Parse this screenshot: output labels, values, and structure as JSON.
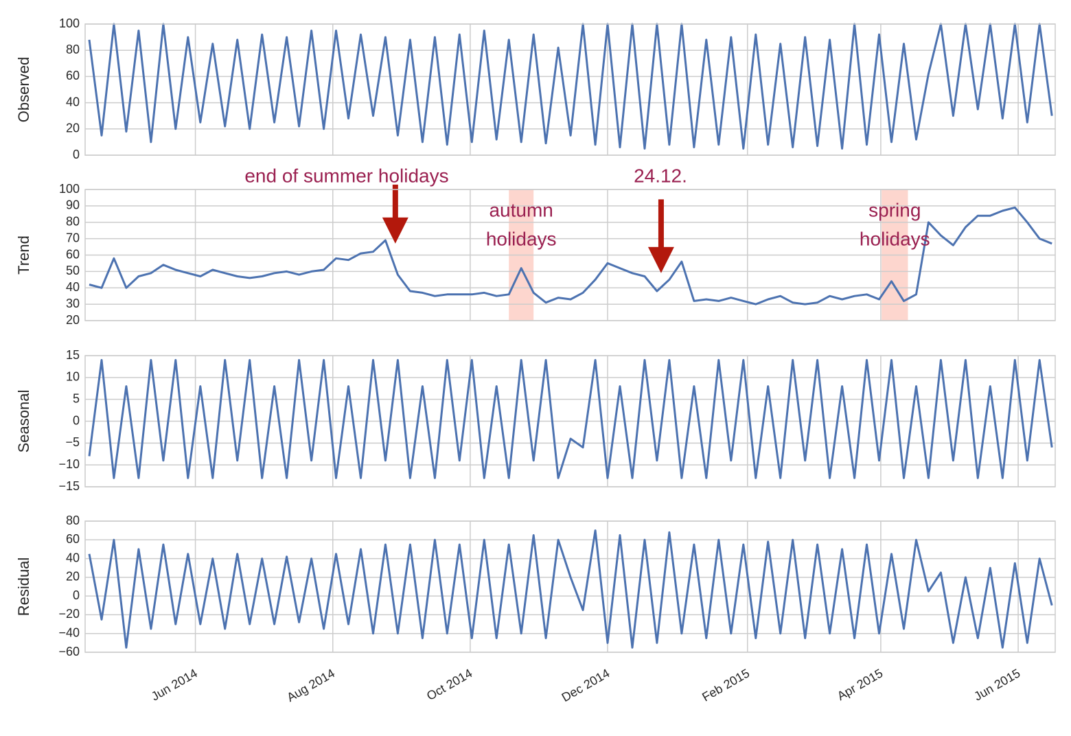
{
  "chart_data": [
    {
      "type": "line",
      "ylabel": "Observed",
      "color": "#4c72b0",
      "x": [
        2014.285,
        2014.3,
        2014.315,
        2014.33,
        2014.345,
        2014.36,
        2014.375,
        2014.39,
        2014.405,
        2014.42,
        2014.435,
        2014.45,
        2014.465,
        2014.48,
        2014.495,
        2014.51,
        2014.525,
        2014.54,
        2014.555,
        2014.57,
        2014.585,
        2014.6,
        2014.615,
        2014.63,
        2014.645,
        2014.66,
        2014.675,
        2014.69,
        2014.705,
        2014.72,
        2014.735,
        2014.75,
        2014.765,
        2014.78,
        2014.795,
        2014.81,
        2014.825,
        2014.84,
        2014.855,
        2014.87,
        2014.885,
        2014.9,
        2014.915,
        2014.93,
        2014.945,
        2014.96,
        2014.975,
        2014.99,
        2015.005,
        2015.02,
        2015.035,
        2015.05,
        2015.065,
        2015.08,
        2015.095,
        2015.11,
        2015.125,
        2015.14,
        2015.155,
        2015.17,
        2015.185,
        2015.2,
        2015.215,
        2015.23,
        2015.245,
        2015.26,
        2015.275,
        2015.29,
        2015.305,
        2015.32,
        2015.335,
        2015.35,
        2015.365,
        2015.38,
        2015.395,
        2015.41,
        2015.425,
        2015.44,
        2015.455
      ],
      "values": [
        88,
        15,
        100,
        18,
        95,
        10,
        100,
        20,
        90,
        25,
        85,
        22,
        88,
        20,
        92,
        25,
        90,
        22,
        95,
        20,
        95,
        28,
        92,
        30,
        90,
        15,
        88,
        10,
        90,
        8,
        92,
        10,
        95,
        12,
        88,
        10,
        92,
        9,
        82,
        15,
        100,
        8,
        100,
        6,
        100,
        5,
        100,
        8,
        100,
        6,
        88,
        8,
        90,
        5,
        92,
        8,
        85,
        6,
        90,
        7,
        88,
        5,
        100,
        8,
        92,
        10,
        85,
        12,
        62,
        100,
        30,
        100,
        35,
        100,
        28,
        100,
        25,
        100,
        30
      ],
      "xlim": [
        2014.28,
        2015.459
      ],
      "ylim": [
        0,
        100
      ],
      "yticks": [
        0,
        20,
        40,
        60,
        80,
        100
      ],
      "grid": true
    },
    {
      "type": "line",
      "ylabel": "Trend",
      "color": "#4c72b0",
      "x": [
        2014.285,
        2014.3,
        2014.315,
        2014.33,
        2014.345,
        2014.36,
        2014.375,
        2014.39,
        2014.405,
        2014.42,
        2014.435,
        2014.45,
        2014.465,
        2014.48,
        2014.495,
        2014.51,
        2014.525,
        2014.54,
        2014.555,
        2014.57,
        2014.585,
        2014.6,
        2014.615,
        2014.63,
        2014.645,
        2014.66,
        2014.675,
        2014.69,
        2014.705,
        2014.72,
        2014.735,
        2014.75,
        2014.765,
        2014.78,
        2014.795,
        2014.81,
        2014.825,
        2014.84,
        2014.855,
        2014.87,
        2014.885,
        2014.9,
        2014.915,
        2014.93,
        2014.945,
        2014.96,
        2014.975,
        2014.99,
        2015.005,
        2015.02,
        2015.035,
        2015.05,
        2015.065,
        2015.08,
        2015.095,
        2015.11,
        2015.125,
        2015.14,
        2015.155,
        2015.17,
        2015.185,
        2015.2,
        2015.215,
        2015.23,
        2015.245,
        2015.26,
        2015.275,
        2015.29,
        2015.305,
        2015.32,
        2015.335,
        2015.35,
        2015.365,
        2015.38,
        2015.395,
        2015.41,
        2015.425,
        2015.44,
        2015.455
      ],
      "values": [
        42,
        40,
        58,
        40,
        47,
        49,
        54,
        51,
        49,
        47,
        51,
        49,
        47,
        46,
        47,
        49,
        50,
        48,
        50,
        51,
        58,
        57,
        61,
        62,
        69,
        48,
        38,
        37,
        35,
        36,
        36,
        36,
        37,
        35,
        36,
        52,
        37,
        31,
        34,
        33,
        37,
        45,
        55,
        52,
        49,
        47,
        38,
        45,
        56,
        32,
        33,
        32,
        34,
        32,
        30,
        33,
        35,
        31,
        30,
        31,
        35,
        33,
        35,
        36,
        33,
        44,
        32,
        36,
        80,
        72,
        66,
        77,
        84,
        84,
        87,
        89,
        80,
        70,
        67
      ],
      "xlim": [
        2014.28,
        2015.459
      ],
      "ylim": [
        20,
        100
      ],
      "yticks": [
        20,
        30,
        40,
        50,
        60,
        70,
        80,
        90,
        100
      ],
      "grid": true,
      "annotations": [
        {
          "text": "end of summer holidays",
          "x": 2014.657,
          "y": [
            67,
            103
          ]
        },
        {
          "text": "24.12.",
          "x": 2014.98,
          "y": [
            49,
            94
          ]
        }
      ],
      "spans": [
        {
          "text": [
            "autumn",
            "holidays"
          ],
          "x": [
            2014.795,
            2014.825
          ]
        },
        {
          "text": [
            "spring",
            "holidays"
          ],
          "x": [
            2015.248,
            2015.28
          ]
        }
      ]
    },
    {
      "type": "line",
      "ylabel": "Seasonal",
      "color": "#4c72b0",
      "x": [
        2014.285,
        2014.3,
        2014.315,
        2014.33,
        2014.345,
        2014.36,
        2014.375,
        2014.39,
        2014.405,
        2014.42,
        2014.435,
        2014.45,
        2014.465,
        2014.48,
        2014.495,
        2014.51,
        2014.525,
        2014.54,
        2014.555,
        2014.57,
        2014.585,
        2014.6,
        2014.615,
        2014.63,
        2014.645,
        2014.66,
        2014.675,
        2014.69,
        2014.705,
        2014.72,
        2014.735,
        2014.75,
        2014.765,
        2014.78,
        2014.795,
        2014.81,
        2014.825,
        2014.84,
        2014.855,
        2014.87,
        2014.885,
        2014.9,
        2014.915,
        2014.93,
        2014.945,
        2014.96,
        2014.975,
        2014.99,
        2015.005,
        2015.02,
        2015.035,
        2015.05,
        2015.065,
        2015.08,
        2015.095,
        2015.11,
        2015.125,
        2015.14,
        2015.155,
        2015.17,
        2015.185,
        2015.2,
        2015.215,
        2015.23,
        2015.245,
        2015.26,
        2015.275,
        2015.29,
        2015.305,
        2015.32,
        2015.335,
        2015.35,
        2015.365,
        2015.38,
        2015.395,
        2015.41,
        2015.425,
        2015.44,
        2015.455
      ],
      "values": [
        -8,
        14,
        -13,
        8,
        -13,
        14,
        -9,
        14,
        -13,
        8,
        -13,
        14,
        -9,
        14,
        -13,
        8,
        -13,
        14,
        -9,
        14,
        -13,
        8,
        -13,
        14,
        -9,
        14,
        -13,
        8,
        -13,
        14,
        -9,
        14,
        -13,
        8,
        -13,
        14,
        -9,
        14,
        -13,
        -4,
        -6,
        14,
        -13,
        8,
        -13,
        14,
        -9,
        14,
        -13,
        8,
        -13,
        14,
        -9,
        14,
        -13,
        8,
        -13,
        14,
        -9,
        14,
        -13,
        8,
        -13,
        14,
        -9,
        14,
        -13,
        8,
        -13,
        14,
        -9,
        14,
        -13,
        8,
        -13,
        14,
        -9,
        14,
        -6
      ],
      "xlim": [
        2014.28,
        2015.459
      ],
      "ylim": [
        -15,
        15
      ],
      "yticks": [
        {
          "value": -15,
          "label": "−15"
        },
        {
          "value": -10,
          "label": "−10"
        },
        {
          "value": -5,
          "label": "−5"
        },
        0,
        5,
        10,
        15
      ],
      "grid": true
    },
    {
      "type": "line",
      "ylabel": "Residual",
      "color": "#4c72b0",
      "x": [
        2014.285,
        2014.3,
        2014.315,
        2014.33,
        2014.345,
        2014.36,
        2014.375,
        2014.39,
        2014.405,
        2014.42,
        2014.435,
        2014.45,
        2014.465,
        2014.48,
        2014.495,
        2014.51,
        2014.525,
        2014.54,
        2014.555,
        2014.57,
        2014.585,
        2014.6,
        2014.615,
        2014.63,
        2014.645,
        2014.66,
        2014.675,
        2014.69,
        2014.705,
        2014.72,
        2014.735,
        2014.75,
        2014.765,
        2014.78,
        2014.795,
        2014.81,
        2014.825,
        2014.84,
        2014.855,
        2014.87,
        2014.885,
        2014.9,
        2014.915,
        2014.93,
        2014.945,
        2014.96,
        2014.975,
        2014.99,
        2015.005,
        2015.02,
        2015.035,
        2015.05,
        2015.065,
        2015.08,
        2015.095,
        2015.11,
        2015.125,
        2015.14,
        2015.155,
        2015.17,
        2015.185,
        2015.2,
        2015.215,
        2015.23,
        2015.245,
        2015.26,
        2015.275,
        2015.29,
        2015.305,
        2015.32,
        2015.335,
        2015.35,
        2015.365,
        2015.38,
        2015.395,
        2015.41,
        2015.425,
        2015.44,
        2015.455
      ],
      "values": [
        45,
        -25,
        60,
        -55,
        50,
        -35,
        55,
        -30,
        45,
        -30,
        40,
        -35,
        45,
        -30,
        40,
        -30,
        42,
        -28,
        40,
        -35,
        45,
        -30,
        50,
        -40,
        55,
        -40,
        55,
        -45,
        60,
        -40,
        55,
        -45,
        60,
        -45,
        55,
        -40,
        65,
        -45,
        60,
        20,
        -15,
        70,
        -50,
        65,
        -55,
        60,
        -50,
        68,
        -40,
        55,
        -45,
        60,
        -40,
        55,
        -45,
        58,
        -40,
        60,
        -45,
        55,
        -40,
        50,
        -45,
        55,
        -40,
        45,
        -35,
        60,
        5,
        25,
        -50,
        20,
        -45,
        30,
        -55,
        35,
        -50,
        40,
        -10
      ],
      "xlim": [
        2014.28,
        2015.459
      ],
      "ylim": [
        -60,
        80
      ],
      "yticks": [
        {
          "value": -60,
          "label": "−60"
        },
        {
          "value": -40,
          "label": "−40"
        },
        {
          "value": -20,
          "label": "−20"
        },
        0,
        20,
        40,
        60,
        80
      ],
      "grid": true,
      "xticks": [
        {
          "value": 2014.414,
          "label": "Jun 2014"
        },
        {
          "value": 2014.581,
          "label": "Aug 2014"
        },
        {
          "value": 2014.748,
          "label": "Oct 2014"
        },
        {
          "value": 2014.915,
          "label": "Dec 2014"
        },
        {
          "value": 2015.085,
          "label": "Feb 2015"
        },
        {
          "value": 2015.247,
          "label": "Apr 2015"
        },
        {
          "value": 2015.414,
          "label": "Jun 2015"
        }
      ]
    }
  ]
}
